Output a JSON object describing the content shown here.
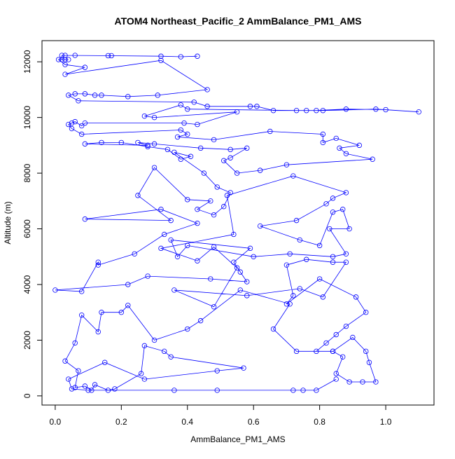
{
  "chart_data": {
    "type": "line",
    "markers": "open-circle",
    "color": "#0000ff",
    "title": "ATOM4 Northeast_Pacific_2 AmmBalance_PM1_AMS",
    "x_label": "AmmBalance_PM1_AMS",
    "y_label": "Altitude (m)",
    "xlim": [
      -0.04,
      1.146
    ],
    "ylim": [
      -330,
      12760
    ],
    "xticks": [
      {
        "value": 0,
        "label": "0.0"
      },
      0.2,
      0.4,
      0.6,
      0.8,
      {
        "value": 1,
        "label": "1.0"
      }
    ],
    "yticks": [
      0,
      2000,
      4000,
      6000,
      8000,
      10000,
      12000
    ],
    "x": [
      0.43,
      0.38,
      0.32,
      0.17,
      0.16,
      0.06,
      0.03,
      0.02,
      0.02,
      0.03,
      0.04,
      0.01,
      0.03,
      0.09,
      0.03,
      0.32,
      0.46,
      0.31,
      0.22,
      0.14,
      0.12,
      0.09,
      0.06,
      0.04,
      0.07,
      0.42,
      0.46,
      0.59,
      0.61,
      0.66,
      0.79,
      0.88,
      1.0,
      1.1,
      0.97,
      0.81,
      0.76,
      0.73,
      0.4,
      0.38,
      0.27,
      0.3,
      0.55,
      0.43,
      0.39,
      0.09,
      0.08,
      0.06,
      0.05,
      0.04,
      0.05,
      0.08,
      0.38,
      0.4,
      0.37,
      0.48,
      0.65,
      0.81,
      0.81,
      0.85,
      0.92,
      0.86,
      0.88,
      0.96,
      0.7,
      0.62,
      0.55,
      0.51,
      0.53,
      0.58,
      0.53,
      0.44,
      0.3,
      0.25,
      0.28,
      0.09,
      0.14,
      0.2,
      0.28,
      0.34,
      0.38,
      0.41,
      0.36,
      0.45,
      0.49,
      0.53,
      0.51,
      0.48,
      0.43,
      0.47,
      0.4,
      0.3,
      0.25,
      0.35,
      0.09,
      0.32,
      0.43,
      0.33,
      0.24,
      0.13,
      0.13,
      0.08,
      0.0,
      0.22,
      0.28,
      0.47,
      0.58,
      0.56,
      0.54,
      0.59,
      0.35,
      0.37,
      0.4,
      0.6,
      0.71,
      0.84,
      0.88,
      0.83,
      0.89,
      0.87,
      0.84,
      0.8,
      0.74,
      0.62,
      0.73,
      0.82,
      0.84,
      0.88,
      0.72,
      0.52,
      0.54,
      0.32,
      0.43,
      0.48,
      0.55,
      0.48,
      0.36,
      0.58,
      0.74,
      0.81,
      0.88,
      0.84,
      0.76,
      0.7,
      0.72,
      0.7,
      0.8,
      0.91,
      0.94,
      0.88,
      0.85,
      0.82,
      0.79,
      0.84,
      0.87,
      0.85,
      0.89,
      0.93,
      0.97,
      0.95,
      0.94,
      0.9,
      0.84,
      0.73,
      0.66,
      0.71,
      0.56,
      0.44,
      0.4,
      0.3,
      0.22,
      0.2,
      0.14,
      0.13,
      0.08,
      0.06,
      0.03,
      0.07,
      0.06,
      0.09,
      0.11,
      0.12,
      0.16,
      0.18,
      0.26,
      0.27,
      0.33,
      0.35,
      0.57,
      0.49,
      0.27,
      0.15,
      0.04,
      0.05,
      0.1,
      0.36,
      0.49,
      0.72,
      0.75,
      0.79,
      0.85
    ],
    "y": [
      12200,
      12180,
      12200,
      12220,
      12220,
      12230,
      12230,
      12230,
      12080,
      12080,
      12080,
      12080,
      11900,
      11800,
      11550,
      12050,
      11000,
      10800,
      10750,
      10800,
      10800,
      10850,
      10850,
      10800,
      10600,
      10550,
      10400,
      10400,
      10400,
      10250,
      10250,
      10300,
      10280,
      10200,
      10300,
      10250,
      10250,
      10250,
      10300,
      10450,
      10050,
      10000,
      10200,
      9750,
      9800,
      9800,
      9700,
      9850,
      9800,
      9750,
      9600,
      9400,
      9550,
      9400,
      9300,
      9200,
      9500,
      9400,
      9100,
      9250,
      9000,
      8900,
      8700,
      8500,
      8300,
      8100,
      8000,
      8450,
      8550,
      8900,
      8850,
      8900,
      9050,
      9100,
      9000,
      9050,
      9100,
      9100,
      8950,
      8850,
      8500,
      8600,
      8750,
      8000,
      7500,
      7300,
      6800,
      6500,
      6700,
      7000,
      7050,
      8200,
      7200,
      6300,
      6350,
      6700,
      6200,
      5800,
      5100,
      4700,
      4800,
      3750,
      3800,
      4000,
      4300,
      4200,
      4100,
      4450,
      4800,
      5300,
      5600,
      5000,
      5400,
      5000,
      5100,
      5000,
      5100,
      6000,
      6000,
      6700,
      6600,
      5400,
      5600,
      6100,
      6300,
      6900,
      7100,
      7300,
      7900,
      7200,
      5800,
      5300,
      4850,
      5350,
      4600,
      3200,
      3800,
      3600,
      3850,
      3550,
      4800,
      4800,
      4900,
      4700,
      3600,
      3300,
      4200,
      3550,
      3000,
      2500,
      2200,
      1900,
      1600,
      1600,
      1400,
      800,
      500,
      500,
      500,
      1200,
      1600,
      2100,
      1600,
      1600,
      2400,
      3300,
      3800,
      2700,
      2400,
      2000,
      3250,
      3000,
      3000,
      2300,
      2900,
      1900,
      1250,
      900,
      300,
      350,
      200,
      400,
      200,
      250,
      800,
      1800,
      1600,
      1400,
      1000,
      900,
      600,
      1200,
      600,
      250,
      200,
      200,
      200,
      200,
      200,
      200,
      600
    ]
  }
}
